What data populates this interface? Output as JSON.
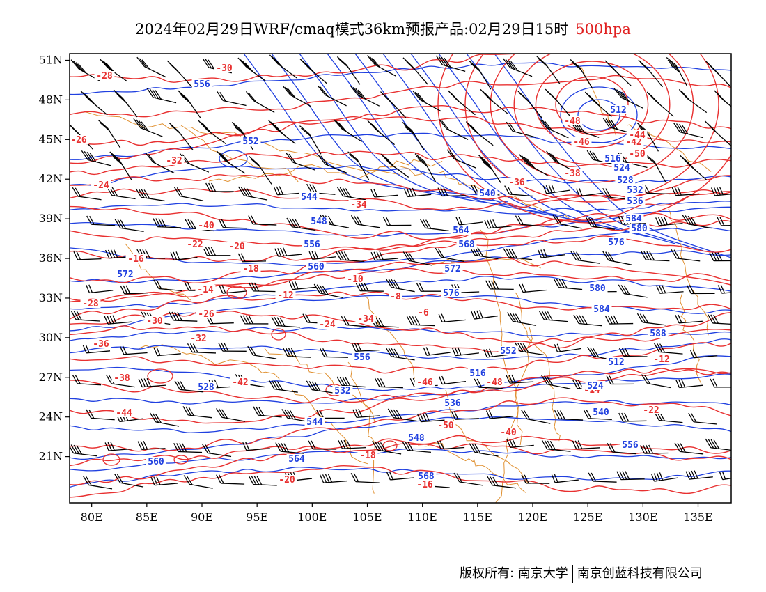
{
  "title": {
    "main": "2024年02月29日WRF/cmaq模式36km预报产品:02月29日15时",
    "level": "500hpa",
    "level_color": "#e02020"
  },
  "axes": {
    "lat_labels": [
      "51N",
      "48N",
      "45N",
      "42N",
      "39N",
      "36N",
      "33N",
      "30N",
      "27N",
      "24N",
      "21N"
    ],
    "lat_values": [
      51,
      48,
      45,
      42,
      39,
      36,
      33,
      30,
      27,
      24,
      21
    ],
    "lon_labels": [
      "80E",
      "85E",
      "90E",
      "95E",
      "100E",
      "105E",
      "110E",
      "115E",
      "120E",
      "125E",
      "130E",
      "135E"
    ],
    "lon_values": [
      80,
      85,
      90,
      95,
      100,
      105,
      110,
      115,
      120,
      125,
      130,
      135
    ],
    "lon_range": [
      78,
      138
    ],
    "lat_range": [
      17.5,
      51.5
    ]
  },
  "colors": {
    "temperature": "#e83030",
    "height": "#2040e0",
    "coast": "#e09030",
    "wind": "#000000"
  },
  "temperature_labels": [
    "-28",
    "-30",
    "-26",
    "-32",
    "-24",
    "-34",
    "-36",
    "-38",
    "-42",
    "-44",
    "-46",
    "-48",
    "-50",
    "-40",
    "-22",
    "-20",
    "-18",
    "-16",
    "-14",
    "-12",
    "-10",
    "-8",
    "-6"
  ],
  "height_labels": [
    "556",
    "552",
    "512",
    "516",
    "524",
    "528",
    "532",
    "536",
    "540",
    "544",
    "548",
    "556",
    "560",
    "564",
    "568",
    "572",
    "576",
    "580",
    "584",
    "588"
  ],
  "footer": {
    "left": "版权所有: 南京大学",
    "right": "南京创蓝科技有限公司"
  }
}
